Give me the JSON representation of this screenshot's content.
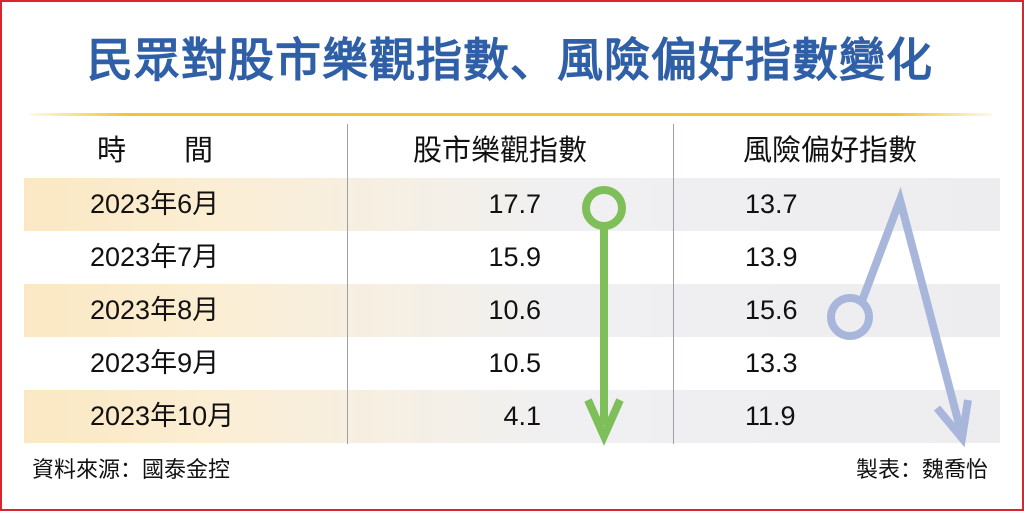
{
  "title": "民眾對股市樂觀指數、風險偏好指數變化",
  "headers": {
    "time": "時　　間",
    "stock": "股市樂觀指數",
    "risk": "風險偏好指數"
  },
  "rows": [
    {
      "period": "2023年6月",
      "stock": "17.7",
      "risk": "13.7"
    },
    {
      "period": "2023年7月",
      "stock": "15.9",
      "risk": "13.9"
    },
    {
      "period": "2023年8月",
      "stock": "10.6",
      "risk": "15.6"
    },
    {
      "period": "2023年9月",
      "stock": "10.5",
      "risk": "13.3"
    },
    {
      "period": "2023年10月",
      "stock": "4.1",
      "risk": "11.9"
    }
  ],
  "footer": {
    "source": "資料來源：國泰金控",
    "credit": "製表：魏喬怡"
  },
  "colors": {
    "title": "#2f5fa6",
    "stock_arrow": "#7fbf5a",
    "risk_arrow": "#a9b6dc",
    "rule": "#f4c330",
    "border": "#d9262b"
  },
  "chart_data": {
    "type": "table",
    "title": "民眾對股市樂觀指數、風險偏好指數變化",
    "categories": [
      "2023年6月",
      "2023年7月",
      "2023年8月",
      "2023年9月",
      "2023年10月"
    ],
    "series": [
      {
        "name": "股市樂觀指數",
        "values": [
          17.7,
          15.9,
          10.6,
          10.5,
          4.1
        ]
      },
      {
        "name": "風險偏好指數",
        "values": [
          13.7,
          13.9,
          15.6,
          13.3,
          11.9
        ]
      }
    ],
    "annotations": [
      "股市樂觀指數: downward arrow from 2023年6月 to 2023年10月",
      "風險偏好指數: rises to peak then falls (arrow pointing down)"
    ]
  }
}
